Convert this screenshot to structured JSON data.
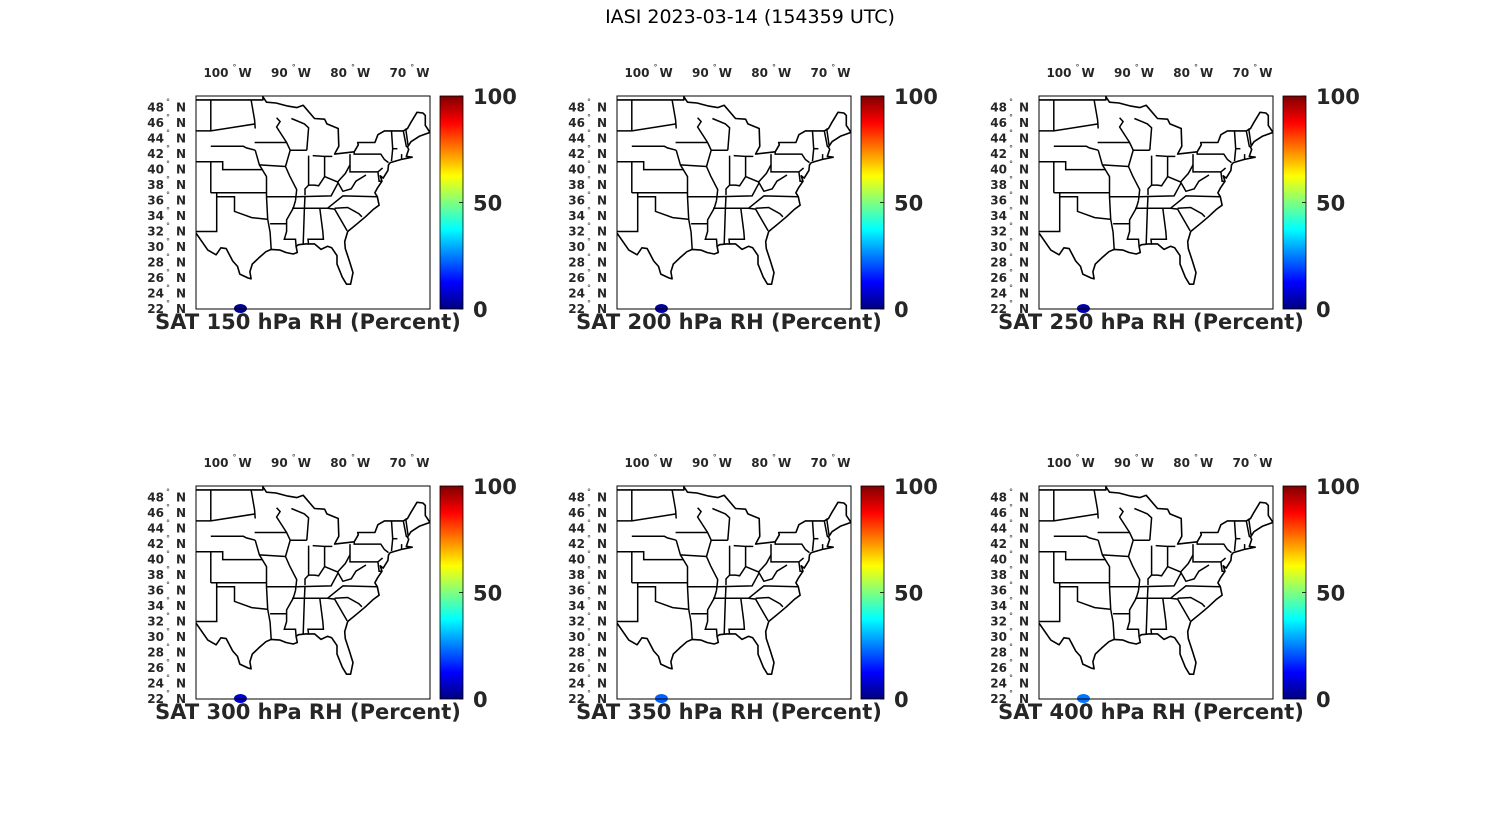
{
  "figure": {
    "title": "IASI 2023-03-14 (154359 UTC)"
  },
  "colormap": [
    "#00007f",
    "#0000ff",
    "#007fff",
    "#00ffff",
    "#7fff7f",
    "#ffff00",
    "#ff7f00",
    "#ff0000",
    "#7f0000"
  ],
  "map": {
    "lon_ticks": [
      {
        "value": 100,
        "label": "100",
        "hemi": "W"
      },
      {
        "value": 90,
        "label": "90",
        "hemi": "W"
      },
      {
        "value": 80,
        "label": "80",
        "hemi": "W"
      },
      {
        "value": 70,
        "label": "70",
        "hemi": "W"
      }
    ],
    "lat_ticks": [
      {
        "value": 48,
        "label": "48"
      },
      {
        "value": 46,
        "label": "46"
      },
      {
        "value": 44,
        "label": "44"
      },
      {
        "value": 42,
        "label": "42"
      },
      {
        "value": 40,
        "label": "40"
      },
      {
        "value": 38,
        "label": "38"
      },
      {
        "value": 36,
        "label": "36"
      },
      {
        "value": 34,
        "label": "34"
      },
      {
        "value": 32,
        "label": "32"
      },
      {
        "value": 30,
        "label": "30"
      },
      {
        "value": 28,
        "label": "28"
      },
      {
        "value": 26,
        "label": "26"
      },
      {
        "value": 24,
        "label": "24"
      },
      {
        "value": 22,
        "label": "22"
      }
    ],
    "lat_hemi": "N",
    "extent": {
      "lon_min": -106.5,
      "lon_max": -67,
      "lat_min": 22,
      "lat_max": 49.5
    }
  },
  "colorbar": {
    "min": 0,
    "max": 100,
    "ticks": [
      "0",
      "50",
      "100"
    ]
  },
  "panels": [
    {
      "caption": "SAT 150 hPa RH (Percent)",
      "observation": {
        "lon": -99,
        "lat": 22,
        "value": 2
      }
    },
    {
      "caption": "SAT 200 hPa RH (Percent)",
      "observation": {
        "lon": -99,
        "lat": 22,
        "value": 3
      }
    },
    {
      "caption": "SAT 250 hPa RH (Percent)",
      "observation": {
        "lon": -99,
        "lat": 22,
        "value": 4
      }
    },
    {
      "caption": "SAT 300 hPa RH (Percent)",
      "observation": {
        "lon": -99,
        "lat": 22,
        "value": 8
      }
    },
    {
      "caption": "SAT 350 hPa RH (Percent)",
      "observation": {
        "lon": -99,
        "lat": 22,
        "value": 22
      }
    },
    {
      "caption": "SAT 400 hPa RH (Percent)",
      "observation": {
        "lon": -99,
        "lat": 22,
        "value": 24
      }
    }
  ]
}
